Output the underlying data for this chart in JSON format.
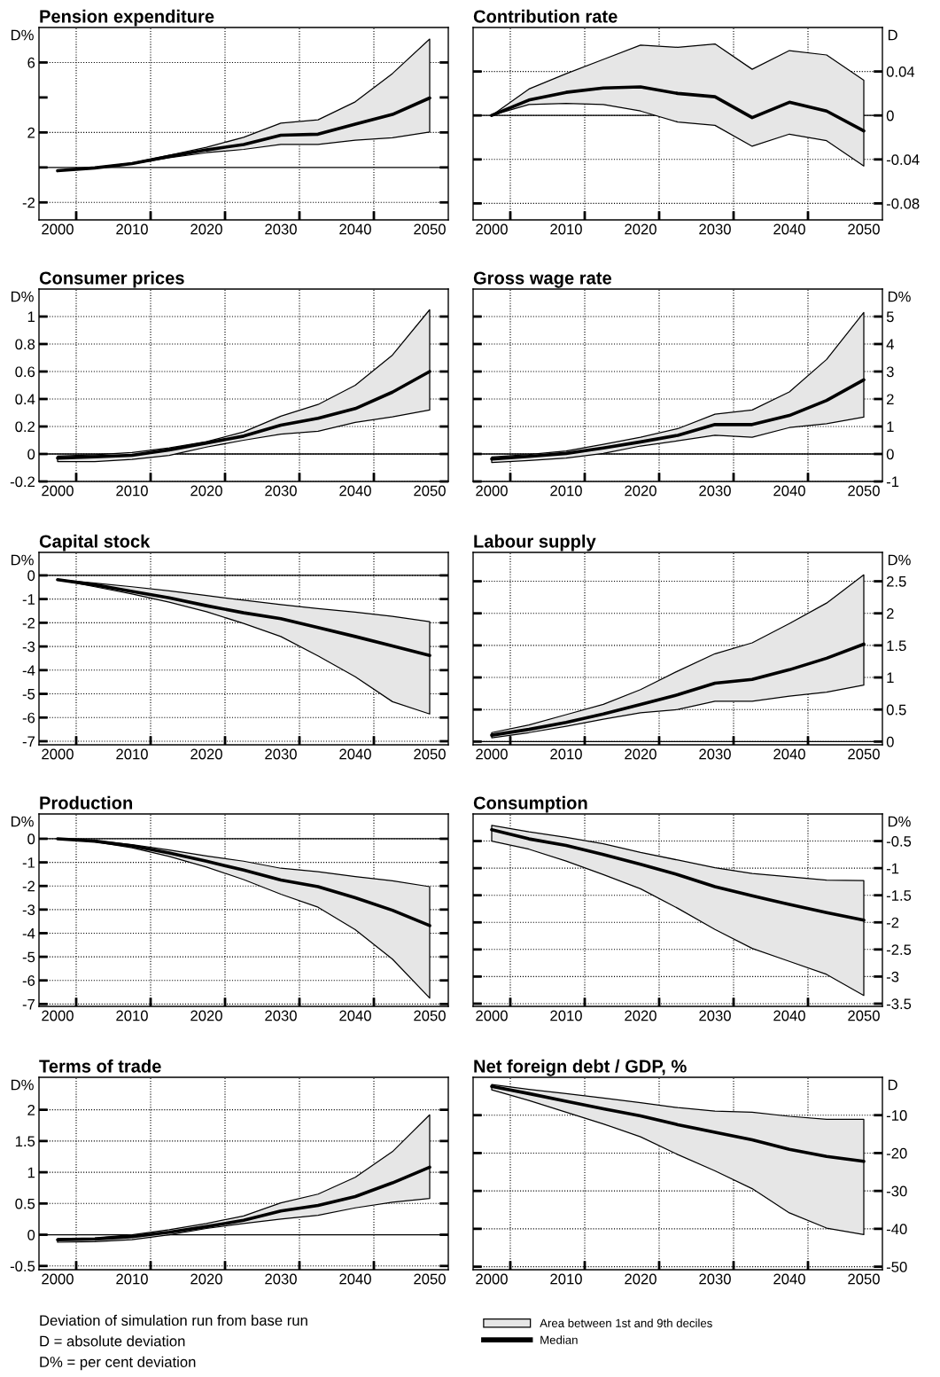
{
  "chart_data": [
    {
      "type": "line",
      "title": "Pension expenditure",
      "ylabel": "D%",
      "x": [
        2000,
        2005,
        2010,
        2015,
        2020,
        2025,
        2030,
        2035,
        2040,
        2045,
        2050
      ],
      "xlim": [
        1997.5,
        2052.5
      ],
      "xticks": [
        2000,
        2010,
        2020,
        2030,
        2040,
        2050,
        {
          "value": 2002.5,
          "label": null
        },
        {
          "value": 2012.5,
          "label": null
        },
        {
          "value": 2022.5,
          "label": null
        },
        {
          "value": 2032.5,
          "label": null
        },
        {
          "value": 2042.5,
          "label": null
        }
      ],
      "ylim": [
        -3,
        8
      ],
      "yticks": [
        6,
        {
          "value": 4,
          "label": null
        },
        2,
        {
          "value": 0,
          "label": null
        },
        -2
      ],
      "grid": true,
      "ref_lines": [
        {
          "axis": "y",
          "value": 0
        }
      ],
      "series": [
        {
          "color": "#000000",
          "values": [
            -0.19,
            -0.03,
            0.22,
            0.63,
            1.0,
            1.31,
            1.84,
            1.9,
            2.47,
            3.03,
            3.97
          ],
          "lower": [
            -0.19,
            -0.05,
            0.2,
            0.55,
            0.84,
            1.03,
            1.31,
            1.31,
            1.56,
            1.69,
            2.03
          ],
          "upper": [
            -0.19,
            0.0,
            0.25,
            0.7,
            1.15,
            1.72,
            2.53,
            2.72,
            3.75,
            5.37,
            7.34
          ]
        }
      ]
    },
    {
      "type": "line",
      "title": "Contribution rate",
      "y2label": "D",
      "x": [
        2000,
        2005,
        2010,
        2015,
        2020,
        2025,
        2030,
        2035,
        2040,
        2045,
        2050
      ],
      "xlim": [
        1997.5,
        2052.5
      ],
      "xticks": [
        2000,
        2010,
        2020,
        2030,
        2040,
        2050,
        {
          "value": 2002.5,
          "label": null
        },
        {
          "value": 2012.5,
          "label": null
        },
        {
          "value": 2022.5,
          "label": null
        },
        {
          "value": 2032.5,
          "label": null
        },
        {
          "value": 2042.5,
          "label": null
        }
      ],
      "y2lim": [
        -0.095,
        0.08
      ],
      "y2ticks": [
        0.04,
        0,
        -0.04,
        -0.08
      ],
      "grid": true,
      "ref_lines": [
        {
          "axis": "y2",
          "value": 0
        }
      ],
      "series": [
        {
          "axis": "y2",
          "color": "#000000",
          "values": [
            0,
            0.014,
            0.021,
            0.025,
            0.026,
            0.02,
            0.017,
            -0.002,
            0.012,
            0.004,
            -0.014
          ],
          "lower": [
            0,
            0.01,
            0.011,
            0.01,
            0.004,
            -0.006,
            -0.009,
            -0.028,
            -0.017,
            -0.023,
            -0.046
          ],
          "upper": [
            0,
            0.024,
            0.038,
            0.051,
            0.064,
            0.062,
            0.065,
            0.042,
            0.059,
            0.055,
            0.032
          ]
        }
      ]
    },
    {
      "type": "line",
      "title": "Consumer prices",
      "ylabel": "D%",
      "x": [
        2000,
        2005,
        2010,
        2015,
        2020,
        2025,
        2030,
        2035,
        2040,
        2045,
        2050
      ],
      "xlim": [
        1997.5,
        2052.5
      ],
      "xticks": [
        2000,
        2010,
        2020,
        2030,
        2040,
        2050,
        {
          "value": 2002.5,
          "label": null
        },
        {
          "value": 2012.5,
          "label": null
        },
        {
          "value": 2022.5,
          "label": null
        },
        {
          "value": 2032.5,
          "label": null
        },
        {
          "value": 2042.5,
          "label": null
        }
      ],
      "ylim": [
        -0.2,
        1.2
      ],
      "yticks": [
        1,
        0.8,
        0.6,
        0.4,
        0.2,
        0,
        -0.2
      ],
      "grid": true,
      "ref_lines": [
        {
          "axis": "y",
          "value": 0
        }
      ],
      "series": [
        {
          "color": "#000000",
          "values": [
            -0.03,
            -0.02,
            -0.01,
            0.03,
            0.08,
            0.13,
            0.21,
            0.26,
            0.33,
            0.45,
            0.6
          ],
          "lower": [
            -0.055,
            -0.055,
            -0.04,
            -0.01,
            0.05,
            0.1,
            0.145,
            0.165,
            0.23,
            0.27,
            0.32
          ],
          "upper": [
            -0.015,
            -0.005,
            0.01,
            0.045,
            0.09,
            0.16,
            0.275,
            0.36,
            0.5,
            0.72,
            1.05
          ]
        }
      ]
    },
    {
      "type": "line",
      "title": "Gross wage rate",
      "y2label": "D%",
      "x": [
        2000,
        2005,
        2010,
        2015,
        2020,
        2025,
        2030,
        2035,
        2040,
        2045,
        2050
      ],
      "xlim": [
        1997.5,
        2052.5
      ],
      "xticks": [
        2000,
        2010,
        2020,
        2030,
        2040,
        2050,
        {
          "value": 2002.5,
          "label": null
        },
        {
          "value": 2012.5,
          "label": null
        },
        {
          "value": 2022.5,
          "label": null
        },
        {
          "value": 2032.5,
          "label": null
        },
        {
          "value": 2042.5,
          "label": null
        }
      ],
      "y2lim": [
        -1,
        6
      ],
      "y2ticks": [
        5,
        4,
        3,
        2,
        1,
        0,
        -1
      ],
      "grid": true,
      "ref_lines": [
        {
          "axis": "y2",
          "value": 0
        }
      ],
      "series": [
        {
          "axis": "y2",
          "color": "#000000",
          "values": [
            -0.18,
            -0.09,
            0.02,
            0.22,
            0.44,
            0.68,
            1.07,
            1.07,
            1.4,
            1.95,
            2.7
          ],
          "lower": [
            -0.31,
            -0.24,
            -0.15,
            0.02,
            0.29,
            0.48,
            0.68,
            0.61,
            0.96,
            1.1,
            1.34
          ],
          "upper": [
            -0.11,
            -0.02,
            0.11,
            0.35,
            0.61,
            0.92,
            1.45,
            1.6,
            2.26,
            3.44,
            5.15
          ]
        }
      ]
    },
    {
      "type": "line",
      "title": "Capital stock",
      "ylabel": "D%",
      "x": [
        2000,
        2005,
        2010,
        2015,
        2020,
        2025,
        2030,
        2035,
        2040,
        2045,
        2050
      ],
      "xlim": [
        1997.5,
        2052.5
      ],
      "xticks": [
        2000,
        2010,
        2020,
        2030,
        2040,
        2050,
        {
          "value": 2002.5,
          "label": null
        },
        {
          "value": 2012.5,
          "label": null
        },
        {
          "value": 2022.5,
          "label": null
        },
        {
          "value": 2032.5,
          "label": null
        },
        {
          "value": 2042.5,
          "label": null
        }
      ],
      "ylim": [
        -7.15,
        0.97
      ],
      "yticks": [
        0,
        -1,
        -2,
        -3,
        -4,
        -5,
        -6,
        -7
      ],
      "grid": true,
      "ref_lines": [
        {
          "axis": "y",
          "value": 0
        }
      ],
      "series": [
        {
          "color": "#000000",
          "values": [
            -0.18,
            -0.4,
            -0.68,
            -0.95,
            -1.28,
            -1.58,
            -1.83,
            -2.2,
            -2.58,
            -2.98,
            -3.38
          ],
          "lower": [
            -0.18,
            -0.48,
            -0.78,
            -1.13,
            -1.53,
            -2.03,
            -2.58,
            -3.4,
            -4.28,
            -5.33,
            -5.85
          ],
          "upper": [
            -0.18,
            -0.33,
            -0.48,
            -0.65,
            -0.85,
            -1.05,
            -1.23,
            -1.4,
            -1.55,
            -1.73,
            -1.95
          ]
        }
      ]
    },
    {
      "type": "line",
      "title": "Labour supply",
      "y2label": "D%",
      "x": [
        2000,
        2005,
        2010,
        2015,
        2020,
        2025,
        2030,
        2035,
        2040,
        2045,
        2050
      ],
      "xlim": [
        1997.5,
        2052.5
      ],
      "xticks": [
        2000,
        2010,
        2020,
        2030,
        2040,
        2050,
        {
          "value": 2002.5,
          "label": null
        },
        {
          "value": 2012.5,
          "label": null
        },
        {
          "value": 2022.5,
          "label": null
        },
        {
          "value": 2032.5,
          "label": null
        },
        {
          "value": 2042.5,
          "label": null
        }
      ],
      "y2lim": [
        -0.05,
        2.95
      ],
      "y2ticks": [
        2.5,
        2,
        1.5,
        1,
        0.5,
        0
      ],
      "grid": true,
      "ref_lines": [
        {
          "axis": "y2",
          "value": 0
        }
      ],
      "series": [
        {
          "axis": "y2",
          "color": "#000000",
          "values": [
            0.1,
            0.19,
            0.3,
            0.43,
            0.58,
            0.73,
            0.91,
            0.97,
            1.12,
            1.3,
            1.52
          ],
          "lower": [
            0.06,
            0.14,
            0.24,
            0.35,
            0.45,
            0.5,
            0.63,
            0.63,
            0.71,
            0.77,
            0.88
          ],
          "upper": [
            0.14,
            0.26,
            0.42,
            0.58,
            0.81,
            1.1,
            1.37,
            1.54,
            1.84,
            2.16,
            2.6
          ]
        }
      ]
    },
    {
      "type": "line",
      "title": "Production",
      "ylabel": "D%",
      "x": [
        2000,
        2005,
        2010,
        2015,
        2020,
        2025,
        2030,
        2035,
        2040,
        2045,
        2050
      ],
      "xlim": [
        1997.5,
        2052.5
      ],
      "xticks": [
        2000,
        2010,
        2020,
        2030,
        2040,
        2050,
        {
          "value": 2002.5,
          "label": null
        },
        {
          "value": 2012.5,
          "label": null
        },
        {
          "value": 2022.5,
          "label": null
        },
        {
          "value": 2032.5,
          "label": null
        },
        {
          "value": 2042.5,
          "label": null
        }
      ],
      "ylim": [
        -7.1,
        1.05
      ],
      "yticks": [
        0,
        -1,
        -2,
        -3,
        -4,
        -5,
        -6,
        -7
      ],
      "grid": true,
      "ref_lines": [
        {
          "axis": "y",
          "value": 0
        }
      ],
      "series": [
        {
          "color": "#000000",
          "values": [
            0,
            -0.1,
            -0.3,
            -0.6,
            -0.95,
            -1.33,
            -1.75,
            -2.03,
            -2.5,
            -3.03,
            -3.68
          ],
          "lower": [
            0,
            -0.13,
            -0.38,
            -0.75,
            -1.2,
            -1.73,
            -2.35,
            -2.9,
            -3.85,
            -5.1,
            -6.75
          ],
          "upper": [
            0,
            -0.08,
            -0.25,
            -0.48,
            -0.73,
            -0.95,
            -1.25,
            -1.4,
            -1.6,
            -1.78,
            -2.03
          ]
        }
      ]
    },
    {
      "type": "line",
      "title": "Consumption",
      "y2label": "D%",
      "x": [
        2000,
        2005,
        2010,
        2015,
        2020,
        2025,
        2030,
        2035,
        2040,
        2045,
        2050
      ],
      "xlim": [
        1997.5,
        2052.5
      ],
      "xticks": [
        2000,
        2010,
        2020,
        2030,
        2040,
        2050,
        {
          "value": 2002.5,
          "label": null
        },
        {
          "value": 2012.5,
          "label": null
        },
        {
          "value": 2022.5,
          "label": null
        },
        {
          "value": 2032.5,
          "label": null
        },
        {
          "value": 2042.5,
          "label": null
        }
      ],
      "y2lim": [
        -3.55,
        0
      ],
      "y2ticks": [
        -0.5,
        -1,
        -1.5,
        -2,
        -2.5,
        -3,
        -3.5
      ],
      "grid": true,
      "series": [
        {
          "axis": "y2",
          "color": "#000000",
          "values": [
            -0.29,
            -0.46,
            -0.58,
            -0.75,
            -0.93,
            -1.12,
            -1.34,
            -1.51,
            -1.67,
            -1.82,
            -1.96
          ],
          "lower": [
            -0.5,
            -0.65,
            -0.87,
            -1.12,
            -1.38,
            -1.74,
            -2.13,
            -2.48,
            -2.72,
            -2.96,
            -3.35
          ],
          "upper": [
            -0.21,
            -0.33,
            -0.43,
            -0.55,
            -0.71,
            -0.85,
            -0.99,
            -1.1,
            -1.16,
            -1.22,
            -1.23
          ]
        }
      ]
    },
    {
      "type": "line",
      "title": "Terms of trade",
      "ylabel": "D%",
      "x": [
        2000,
        2005,
        2010,
        2015,
        2020,
        2025,
        2030,
        2035,
        2040,
        2045,
        2050
      ],
      "xlim": [
        1997.5,
        2052.5
      ],
      "xticks": [
        2000,
        2010,
        2020,
        2030,
        2040,
        2050,
        {
          "value": 2002.5,
          "label": null
        },
        {
          "value": 2012.5,
          "label": null
        },
        {
          "value": 2022.5,
          "label": null
        },
        {
          "value": 2032.5,
          "label": null
        },
        {
          "value": 2042.5,
          "label": null
        }
      ],
      "ylim": [
        -0.56,
        2.52
      ],
      "yticks": [
        2,
        1.5,
        1,
        0.5,
        0,
        -0.5
      ],
      "grid": true,
      "ref_lines": [
        {
          "axis": "y",
          "value": 0
        }
      ],
      "annotations": [
        "Deviation of simulation run from base run",
        "D = absolute deviation",
        "D% = per cent deviation"
      ],
      "series": [
        {
          "color": "#000000",
          "values": [
            -0.08,
            -0.07,
            -0.03,
            0.04,
            0.13,
            0.23,
            0.38,
            0.47,
            0.61,
            0.83,
            1.08
          ],
          "lower": [
            -0.12,
            -0.11,
            -0.08,
            0.0,
            0.1,
            0.18,
            0.25,
            0.31,
            0.43,
            0.52,
            0.58
          ],
          "upper": [
            -0.06,
            -0.05,
            0.0,
            0.08,
            0.18,
            0.3,
            0.51,
            0.65,
            0.92,
            1.33,
            1.92
          ]
        }
      ]
    },
    {
      "type": "line",
      "title": "Net foreign debt / GDP, %",
      "y2label": "D",
      "x": [
        2000,
        2005,
        2010,
        2015,
        2020,
        2025,
        2030,
        2035,
        2040,
        2045,
        2050
      ],
      "xlim": [
        1997.5,
        2052.5
      ],
      "xticks": [
        2000,
        2010,
        2020,
        2030,
        2040,
        2050,
        {
          "value": 2002.5,
          "label": null
        },
        {
          "value": 2012.5,
          "label": null
        },
        {
          "value": 2022.5,
          "label": null
        },
        {
          "value": 2032.5,
          "label": null
        },
        {
          "value": 2042.5,
          "label": null
        }
      ],
      "y2lim": [
        -50.8,
        0
      ],
      "y2ticks": [
        -10,
        -20,
        -30,
        -40,
        -50
      ],
      "grid": true,
      "legend": "bottom",
      "annotations": [
        "Area between 1st and 9th deciles"
      ],
      "series": [
        {
          "name": "Median",
          "axis": "y2",
          "color": "#000000",
          "values": [
            -2.4,
            -4.3,
            -6.3,
            -8.3,
            -10.2,
            -12.5,
            -14.5,
            -16.5,
            -19,
            -20.9,
            -22.2
          ],
          "lower": [
            -3.3,
            -6.1,
            -9.2,
            -12.3,
            -15.7,
            -20.4,
            -24.7,
            -29.4,
            -35.8,
            -39.8,
            -41.5
          ],
          "upper": [
            -1.9,
            -3.2,
            -4.3,
            -5.5,
            -6.7,
            -8.0,
            -8.9,
            -9.2,
            -10.3,
            -11.1,
            -11.1
          ]
        }
      ]
    }
  ]
}
